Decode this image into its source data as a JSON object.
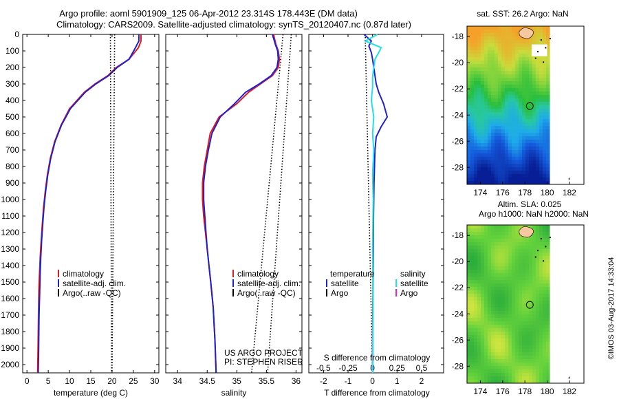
{
  "header": {
    "title_line1": "Argo profile: aoml 5901909_125 06-Apr-2012 23.314S 178.443E (DM data)",
    "title_line2": "Climatology: CARS2009. Satellite-adjusted climatology: synTS_20120407.nc (0.87d later)"
  },
  "footer": {
    "timestamp": "©IMOS 03-Aug-2017 14:33:04",
    "project": "US ARGO PROJECT",
    "pi": "PI: STEPHEN RISER"
  },
  "colors": {
    "climatology": "#e41a1c",
    "satellite": "#1f1fd6",
    "argo": "#000000",
    "sal_satellite": "#22e0e8",
    "sal_argo": "#e020e0"
  },
  "chart_data": [
    {
      "id": "temperature",
      "type": "line",
      "xlabel": "temperature (deg C)",
      "ylabel": "",
      "xlim": [
        -1,
        31
      ],
      "ylim": [
        2050,
        0
      ],
      "xticks": [
        "0",
        "5",
        "10",
        "15",
        "20",
        "25",
        "30"
      ],
      "yticks": [
        "0",
        "100",
        "200",
        "300",
        "400",
        "500",
        "600",
        "700",
        "800",
        "900",
        "1000",
        "1100",
        "1200",
        "1300",
        "1400",
        "1500",
        "1600",
        "1700",
        "1800",
        "1900",
        "2000"
      ],
      "legend": [
        "climatology",
        "satellite-adj. clim.",
        "Argo(..raw -QC)"
      ],
      "series": [
        {
          "name": "climatology",
          "x": [
            26.8,
            26.8,
            26.2,
            24,
            21,
            19,
            16,
            13.5,
            10,
            8,
            6.5,
            5.5,
            4.8,
            4.3,
            3.9,
            3.6,
            3.35,
            3.1,
            2.95,
            2.8,
            2.7,
            2.6,
            2.5
          ],
          "y": [
            0,
            40,
            80,
            150,
            200,
            250,
            300,
            350,
            450,
            550,
            650,
            750,
            850,
            950,
            1050,
            1150,
            1250,
            1350,
            1450,
            1550,
            1700,
            1900,
            2050
          ]
        },
        {
          "name": "satellite-adj. clim.",
          "x": [
            26.3,
            26.3,
            25.5,
            24,
            21.2,
            19.2,
            16.2,
            13.7,
            10.2,
            8.1,
            6.6,
            5.6,
            4.9,
            4.4,
            4.0,
            3.7,
            3.45,
            3.25,
            3.1,
            3.0,
            2.85,
            2.75,
            2.65
          ],
          "y": [
            0,
            40,
            80,
            150,
            200,
            250,
            300,
            350,
            450,
            550,
            650,
            750,
            850,
            950,
            1050,
            1150,
            1250,
            1350,
            1450,
            1550,
            1700,
            1900,
            2050
          ]
        },
        {
          "name": "Argo(..raw -QC)",
          "x": [
            19.6,
            19.9
          ],
          "y": [
            0,
            2050
          ]
        },
        {
          "name": "Argo(..raw -QC)",
          "x": [
            20.6,
            20.0
          ],
          "y": [
            0,
            2050
          ]
        }
      ]
    },
    {
      "id": "salinity",
      "type": "line",
      "xlabel": "salinity",
      "xlim": [
        33.8,
        36.1
      ],
      "ylim": [
        2050,
        0
      ],
      "xticks": [
        "34",
        "34.5",
        "35",
        "35.5",
        "36"
      ],
      "legend": [
        "climatology",
        "satellite-adj. clim.",
        "Argo(..raw -QC)"
      ],
      "series": [
        {
          "name": "climatology",
          "x": [
            35.62,
            35.66,
            35.7,
            35.72,
            35.7,
            35.6,
            35.4,
            35.2,
            35.0,
            34.7,
            34.55,
            34.5,
            34.45,
            34.42,
            34.42,
            34.44,
            34.47,
            34.5,
            34.53,
            34.56,
            34.6,
            34.63,
            34.65
          ],
          "y": [
            0,
            60,
            100,
            150,
            200,
            250,
            300,
            350,
            420,
            500,
            600,
            700,
            800,
            900,
            1000,
            1100,
            1200,
            1300,
            1400,
            1500,
            1650,
            1850,
            2050
          ]
        },
        {
          "name": "satellite-adj. clim.",
          "x": [
            35.6,
            35.65,
            35.69,
            35.7,
            35.68,
            35.58,
            35.38,
            35.15,
            34.96,
            34.72,
            34.58,
            34.52,
            34.47,
            34.44,
            34.44,
            34.46,
            34.48,
            34.5,
            34.53,
            34.56,
            34.6,
            34.63,
            34.65
          ],
          "y": [
            0,
            60,
            100,
            150,
            200,
            250,
            300,
            350,
            420,
            500,
            600,
            700,
            800,
            900,
            1000,
            1100,
            1200,
            1300,
            1400,
            1500,
            1650,
            1850,
            2050
          ]
        },
        {
          "name": "Argo(..raw -QC)",
          "x": [
            35.78,
            35.25
          ],
          "y": [
            0,
            2050
          ]
        },
        {
          "name": "Argo(..raw -QC)",
          "x": [
            35.92,
            35.52
          ],
          "y": [
            0,
            2050
          ]
        }
      ]
    },
    {
      "id": "differences",
      "type": "line",
      "xlabel": "T difference from climatology",
      "xlabel_top": "S difference from climatology",
      "xlim": [
        -2.6,
        2.9
      ],
      "ylim": [
        2050,
        0
      ],
      "xticks": [
        "-2",
        "-1",
        "0",
        "1",
        "2"
      ],
      "xticks_top": [
        {
          "label": "-0.5",
          "x": -2
        },
        {
          "label": "-0.25",
          "x": -1
        },
        {
          "label": "0",
          "x": 0
        },
        {
          "label": "0.25",
          "x": 1
        },
        {
          "label": "0.5",
          "x": 2
        }
      ],
      "legend_temperature_title": "temperature",
      "legend_salinity_title": "salinity",
      "legend_temperature": [
        "satellite",
        "Argo"
      ],
      "legend_salinity": [
        "satellite",
        "Argo"
      ],
      "series": [
        {
          "name": "satellite",
          "x": [
            -0.35,
            -0.05,
            -0.15,
            -0.05,
            0,
            0.05,
            0.1,
            0.15,
            0.25,
            0.45,
            0.6,
            0.35,
            0.15,
            0.1,
            0.08,
            0.06,
            0.04,
            0.03,
            0.02,
            0.01,
            0.0,
            0.0
          ],
          "y": [
            0,
            40,
            70,
            110,
            150,
            200,
            250,
            300,
            350,
            420,
            500,
            560,
            620,
            700,
            800,
            900,
            1100,
            1300,
            1500,
            1700,
            1900,
            2050
          ]
        },
        {
          "name": "satellite",
          "x": [
            0.2,
            -0.3,
            0.35,
            0.25,
            0.1,
            0.05,
            0.0,
            0.0,
            -0.05,
            0.05,
            0.0,
            0.05,
            0.0,
            0.03,
            0.0,
            0.02,
            0.0
          ],
          "y": [
            0,
            40,
            80,
            110,
            150,
            200,
            260,
            320,
            400,
            500,
            600,
            700,
            850,
            1000,
            1300,
            1600,
            2050
          ]
        },
        {
          "name": "Argo",
          "x": [
            -0.3,
            0
          ],
          "y": [
            0,
            2050
          ]
        }
      ]
    },
    {
      "id": "sst-map",
      "type": "heatmap",
      "title": "sat. SST: 26.2  Argo: NaN",
      "xticks": [
        "174",
        "176",
        "178",
        "180",
        "182"
      ],
      "yticks": [
        "-18",
        "-20",
        "-22",
        "-24",
        "-26",
        "-28"
      ],
      "xlim": [
        172.8,
        183.3
      ],
      "ylim": [
        -29.3,
        -17.2
      ],
      "marker": {
        "lon": 178.44,
        "lat": -23.31
      }
    },
    {
      "id": "sla-map",
      "type": "heatmap",
      "title_line1": "Altim. SLA: 0.025",
      "title_line2": "Argo h1000: NaN h2000: NaN",
      "xticks": [
        "174",
        "176",
        "178",
        "180",
        "182"
      ],
      "yticks": [
        "-18",
        "-20",
        "-22",
        "-24",
        "-26",
        "-28"
      ],
      "xlim": [
        172.8,
        183.3
      ],
      "ylim": [
        -29.3,
        -17.2
      ],
      "marker": {
        "lon": 178.44,
        "lat": -23.31
      }
    }
  ]
}
